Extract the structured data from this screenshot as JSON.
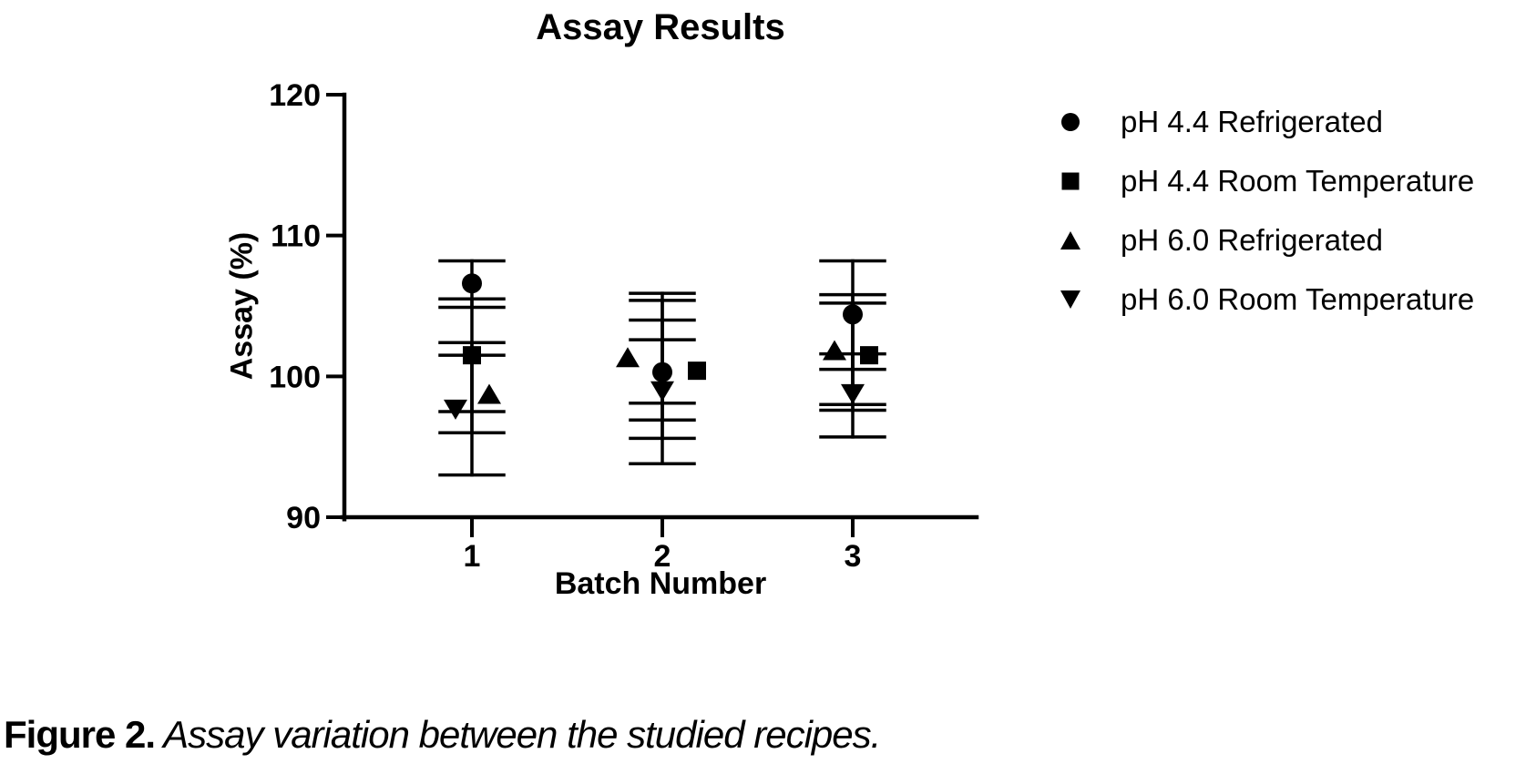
{
  "figure": {
    "caption_bold": "Figure 2.",
    "caption_italic": " Assay variation between the studied recipes."
  },
  "chart_data": {
    "type": "scatter",
    "title": "Assay Results",
    "xlabel": "Batch Number",
    "ylabel": "Assay (%)",
    "x_ticks": [
      "1",
      "2",
      "3"
    ],
    "y_ticks": [
      90,
      100,
      110,
      120
    ],
    "ylim": [
      90,
      120
    ],
    "grid": false,
    "marker_color": "#000000",
    "background_color": "#ffffff",
    "legend_position": "right-outside",
    "error_bars": "vertical lines with horizontal caps, overlapping per batch",
    "series": [
      {
        "name": "pH 4.4 Refrigerated",
        "marker": "circle",
        "points": [
          {
            "x": 1,
            "y": 106.6,
            "err_hi": 108.2,
            "err_lo": 104.9,
            "dx": 0
          },
          {
            "x": 2,
            "y": 100.3,
            "err_hi": 105.9,
            "err_lo": 93.8,
            "dx": 0
          },
          {
            "x": 3,
            "y": 104.4,
            "err_hi": 108.2,
            "err_lo": 100.5,
            "dx": 0
          }
        ]
      },
      {
        "name": "pH 4.4 Room Temperature",
        "marker": "square",
        "points": [
          {
            "x": 1,
            "y": 101.5,
            "err_hi": 105.5,
            "err_lo": 97.5,
            "dx": 0
          },
          {
            "x": 2,
            "y": 100.4,
            "err_hi": 105.4,
            "err_lo": 95.6,
            "dx": 38
          },
          {
            "x": 3,
            "y": 101.5,
            "err_hi": 105.2,
            "err_lo": 97.6,
            "dx": 18
          }
        ]
      },
      {
        "name": "pH 6.0 Refrigerated",
        "marker": "triangle-up",
        "points": [
          {
            "x": 1,
            "y": 98.7,
            "err_hi": 101.5,
            "err_lo": 96.0,
            "dx": 19
          },
          {
            "x": 2,
            "y": 101.3,
            "err_hi": 104.0,
            "err_lo": 98.1,
            "dx": -38
          },
          {
            "x": 3,
            "y": 101.8,
            "err_hi": 105.8,
            "err_lo": 98.0,
            "dx": -20
          }
        ]
      },
      {
        "name": "pH 6.0 Room Temperature",
        "marker": "triangle-down",
        "points": [
          {
            "x": 1,
            "y": 97.7,
            "err_hi": 102.4,
            "err_lo": 93.0,
            "dx": -18
          },
          {
            "x": 2,
            "y": 99.0,
            "err_hi": 102.6,
            "err_lo": 96.9,
            "dx": 0
          },
          {
            "x": 3,
            "y": 98.8,
            "err_hi": 101.6,
            "err_lo": 95.7,
            "dx": 0
          }
        ]
      }
    ]
  }
}
